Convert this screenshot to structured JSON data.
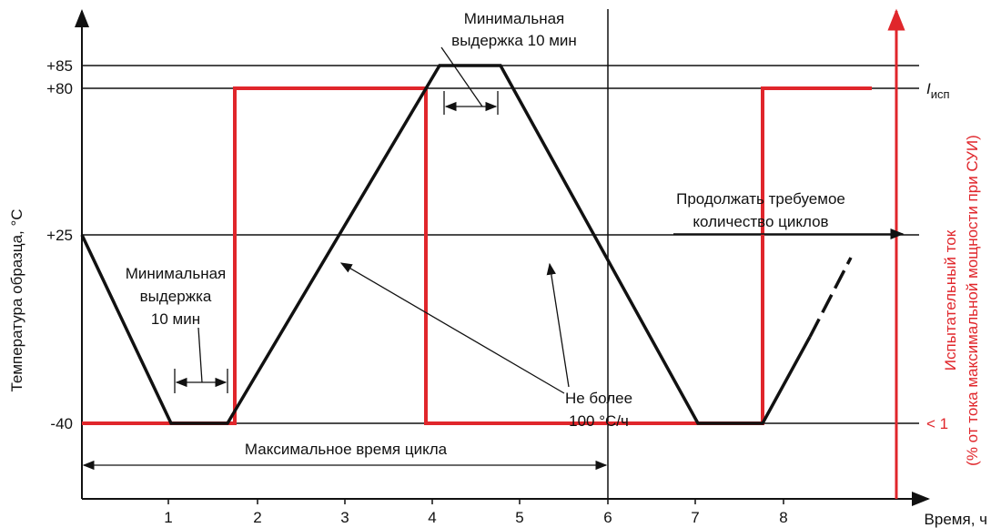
{
  "diagram": {
    "y_axis_label": "Температура образца, °С",
    "y_ticks": [
      "+85",
      "+80",
      "+25",
      "-40"
    ],
    "x_axis_label": "Время, ч",
    "x_ticks": [
      "1",
      "2",
      "3",
      "4",
      "5",
      "6",
      "7",
      "8"
    ],
    "right_axis_label": [
      "Испытательный ток",
      "(% от тока максимальной мощности при СУИ)"
    ],
    "right_ticks": {
      "high": "I",
      "high_sub": "исп",
      "low": "< 1"
    },
    "annotations": {
      "dwell_top": [
        "Минимальная",
        "выдержка 10 мин"
      ],
      "dwell_left": [
        "Минимальная",
        "выдержка",
        "10 мин"
      ],
      "rate": [
        "Не более",
        "100 °С/ч"
      ],
      "continue": [
        "Продолжать требуемое",
        "количество циклов"
      ],
      "cycle": "Максимальное время цикла"
    }
  }
}
